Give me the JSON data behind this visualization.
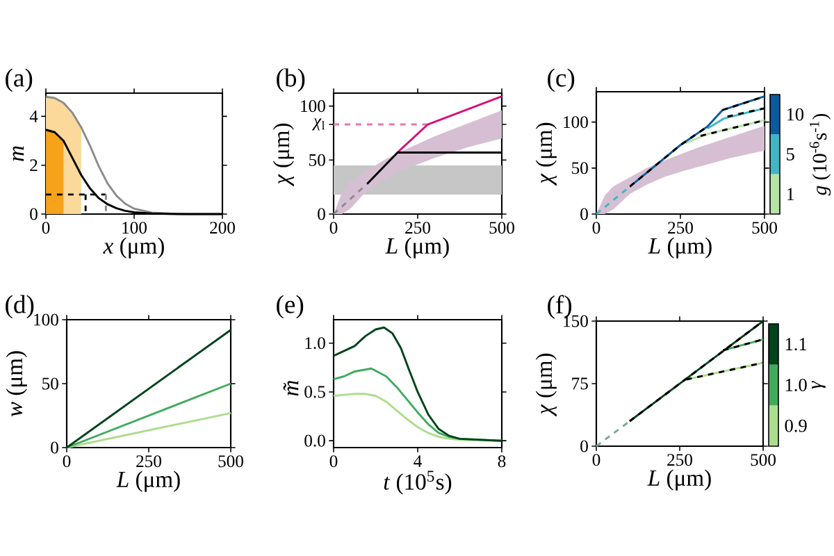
{
  "chart_data": [
    {
      "type": "line",
      "annotations": [
        "(a)"
      ],
      "xlabel": "*x* (μm)",
      "ylabel": "*m*",
      "xlim": [
        0,
        200
      ],
      "ylim": [
        0,
        4.95
      ],
      "xticks": [
        0,
        100,
        200
      ],
      "yticks": [
        0,
        2,
        4
      ],
      "series": [
        {
          "type": "area",
          "color": "#fbd99a",
          "x": [
            0,
            10,
            20,
            30,
            40
          ],
          "values": [
            4.8,
            4.75,
            4.55,
            4.15,
            3.55
          ]
        },
        {
          "type": "area",
          "color": "#f6a21a",
          "x": [
            0,
            10,
            20
          ],
          "values": [
            3.45,
            3.35,
            3.0
          ]
        },
        {
          "color": "#8c8c8c",
          "x": [
            0,
            10,
            20,
            30,
            40,
            50,
            60,
            70,
            80,
            90,
            100,
            120,
            140,
            160,
            200
          ],
          "values": [
            4.8,
            4.75,
            4.55,
            4.15,
            3.55,
            2.8,
            1.95,
            1.25,
            0.75,
            0.42,
            0.22,
            0.06,
            0.02,
            0,
            0
          ]
        },
        {
          "type": "line",
          "color": "#000000",
          "x": [
            0,
            10,
            20,
            30,
            40,
            50,
            60,
            70,
            80,
            90,
            100,
            120,
            150,
            200
          ],
          "values": [
            3.45,
            3.35,
            3.0,
            2.3,
            1.6,
            1.05,
            0.65,
            0.4,
            0.24,
            0.13,
            0.07,
            0.02,
            0,
            0
          ]
        },
        {
          "type": "line",
          "color": "#000000",
          "line_style": "dashed",
          "x": [
            0,
            68
          ],
          "values": [
            0.8,
            0.8
          ]
        },
        {
          "type": "line",
          "color": "#000000",
          "line_style": "dashed",
          "x": [
            45,
            45
          ],
          "values": [
            0.8,
            0
          ]
        },
        {
          "type": "line",
          "color": "#8c8c8c",
          "line_style": "dashed",
          "x": [
            68,
            68
          ],
          "values": [
            0.8,
            0
          ]
        }
      ]
    },
    {
      "type": "line",
      "annotations": [
        "(b)"
      ],
      "xlabel": "*L* (μm)",
      "ylabel": "*χ* (μm)",
      "xlim": [
        0,
        500
      ],
      "ylim": [
        0,
        112
      ],
      "xticks": [
        0,
        250,
        500
      ],
      "yticks": [
        0,
        50,
        {
          "value": 83,
          "label": "*χ*$_{l}$"
        },
        100
      ],
      "bands": [
        {
          "axis": "y",
          "from": 18,
          "to": 45,
          "color": "#c6c6c6"
        }
      ],
      "series": [
        {
          "type": "area",
          "color": "#d6bfd3",
          "x": [
            0,
            25,
            50,
            100,
            150,
            200,
            250,
            300,
            350,
            400,
            450,
            500
          ],
          "values": [
            null,
            null,
            null,
            null,
            null,
            null,
            null,
            null,
            null,
            null,
            null,
            null
          ],
          "lower": [
            0,
            0,
            5,
            22,
            32,
            40,
            46,
            52,
            57,
            62,
            66,
            70
          ],
          "upper": [
            0,
            20,
            30,
            40,
            50,
            58,
            65,
            72,
            78,
            84,
            90,
            96
          ]
        },
        {
          "type": "line",
          "color": "#e377b0",
          "line_style": "dashed",
          "x": [
            0,
            280
          ],
          "values": [
            83,
            83
          ]
        },
        {
          "type": "line",
          "color": "#8c8c8c",
          "line_style": "dashed",
          "x": [
            0,
            100
          ],
          "values": [
            0,
            28
          ]
        },
        {
          "type": "line",
          "color": "#d6127a",
          "x": [
            190,
            280,
            500
          ],
          "values": [
            57,
            83,
            109
          ]
        },
        {
          "type": "line",
          "color": "#000000",
          "x": [
            100,
            190,
            500
          ],
          "values": [
            28,
            57,
            57
          ]
        }
      ]
    },
    {
      "type": "line",
      "annotations": [
        "(c)"
      ],
      "xlabel": "*L* (μm)",
      "ylabel": "*χ* (μm)",
      "xlim": [
        0,
        500
      ],
      "ylim": [
        0,
        133
      ],
      "xticks": [
        0,
        250,
        500
      ],
      "yticks": [
        0,
        50,
        100
      ],
      "legend": "right",
      "legend_title": "*g* (10$^{-6}$s$^{-1}$)",
      "series": [
        {
          "type": "area",
          "color": "#d6bfd3",
          "x": [
            0,
            25,
            50,
            100,
            150,
            200,
            250,
            300,
            350,
            400,
            450,
            500
          ],
          "values": [
            null,
            null,
            null,
            null,
            null,
            null,
            null,
            null,
            null,
            null,
            null,
            null
          ],
          "lower": [
            0,
            0,
            5,
            22,
            32,
            40,
            46,
            51,
            56,
            61,
            65,
            69
          ],
          "upper": [
            0,
            20,
            30,
            40,
            50,
            58,
            65,
            72,
            78,
            84,
            90,
            96
          ]
        },
        {
          "type": "line",
          "color": "#41b6c4",
          "line_style": "dashed",
          "x": [
            0,
            100
          ],
          "values": [
            0,
            30
          ]
        },
        {
          "type": "line",
          "name": "1",
          "color": "#b7e3a7",
          "x": [
            265,
            330,
            500
          ],
          "values": [
            77,
            87,
            102
          ]
        },
        {
          "type": "line",
          "name": "5",
          "color": "#41b6c4",
          "x": [
            330,
            380,
            500
          ],
          "values": [
            93,
            104,
            115
          ]
        },
        {
          "type": "line",
          "name": "10",
          "color": "#0c5a9e",
          "x": [
            100,
            250,
            330,
            375,
            500
          ],
          "values": [
            30,
            75,
            95,
            113,
            128
          ]
        },
        {
          "type": "line",
          "color": "#000000",
          "line_style": "dashed",
          "x": [
            100,
            250,
            330
          ],
          "values": [
            30,
            75,
            95
          ]
        },
        {
          "type": "line",
          "color": "#000000",
          "line_style": "dashed",
          "x": [
            375,
            500
          ],
          "values": [
            113,
            128
          ]
        },
        {
          "type": "line",
          "color": "#000000",
          "line_style": "dashed",
          "x": [
            390,
            500
          ],
          "values": [
            106,
            115
          ]
        },
        {
          "type": "line",
          "color": "#000000",
          "line_style": "dashed",
          "x": [
            310,
            500
          ],
          "values": [
            85,
            102
          ]
        }
      ]
    },
    {
      "type": "line",
      "annotations": [
        "(d)"
      ],
      "xlabel": "*L* (μm)",
      "ylabel": "*w* (μm)",
      "xlim": [
        0,
        500
      ],
      "ylim": [
        0,
        100
      ],
      "xticks": [
        0,
        250,
        500
      ],
      "yticks": [
        0,
        50,
        100
      ],
      "series": [
        {
          "type": "line",
          "color": "#addd8e",
          "x": [
            0,
            500
          ],
          "values": [
            0,
            27
          ]
        },
        {
          "type": "line",
          "color": "#41ab5d",
          "x": [
            0,
            500
          ],
          "values": [
            0,
            50
          ]
        },
        {
          "type": "line",
          "color": "#00441b",
          "x": [
            0,
            500
          ],
          "values": [
            0,
            92
          ]
        }
      ]
    },
    {
      "type": "line",
      "annotations": [
        "(e)"
      ],
      "xlabel": "*t* (10$^{5}$s)",
      "ylabel": "*m̃*",
      "xlim": [
        0,
        8
      ],
      "ylim": [
        -0.07,
        1.24
      ],
      "xticks": [
        0,
        4,
        8
      ],
      "yticks": [
        {
          "value": 0,
          "label": "0.0"
        },
        {
          "value": 0.5,
          "label": "0.5"
        },
        {
          "value": 1,
          "label": "1.0"
        }
      ],
      "series": [
        {
          "type": "line",
          "color": "#addd8e",
          "x": [
            0,
            0.5,
            1,
            1.5,
            2,
            2.5,
            3,
            3.5,
            4,
            4.5,
            5,
            5.5,
            6,
            8
          ],
          "values": [
            0.46,
            0.47,
            0.48,
            0.48,
            0.46,
            0.4,
            0.31,
            0.22,
            0.14,
            0.08,
            0.04,
            0.02,
            0.01,
            0
          ]
        },
        {
          "type": "line",
          "color": "#41ab5d",
          "x": [
            0,
            0.5,
            1,
            1.8,
            2.5,
            3,
            3.5,
            4,
            4.5,
            5,
            5.5,
            6,
            7,
            8
          ],
          "values": [
            0.63,
            0.66,
            0.71,
            0.74,
            0.66,
            0.55,
            0.42,
            0.29,
            0.17,
            0.08,
            0.04,
            0.02,
            0.01,
            0
          ]
        },
        {
          "type": "line",
          "color": "#00441b",
          "x": [
            0,
            1,
            1.5,
            2,
            2.4,
            2.8,
            3.2,
            3.6,
            4,
            4.5,
            5,
            5.5,
            6,
            7,
            8
          ],
          "values": [
            0.87,
            0.97,
            1.07,
            1.14,
            1.16,
            1.1,
            0.95,
            0.72,
            0.5,
            0.27,
            0.12,
            0.05,
            0.02,
            0.01,
            0
          ]
        }
      ]
    },
    {
      "type": "line",
      "annotations": [
        "(f)"
      ],
      "xlabel": "*L* (μm)",
      "ylabel": "*χ* (μm)",
      "xlim": [
        0,
        500
      ],
      "ylim": [
        0,
        150
      ],
      "xticks": [
        0,
        250,
        500
      ],
      "yticks": [
        0,
        75,
        150
      ],
      "legend": "right",
      "legend_title": "*γ*",
      "series": [
        {
          "type": "line",
          "color": "#76a893",
          "line_style": "dashed",
          "x": [
            0,
            100
          ],
          "values": [
            0,
            30
          ]
        },
        {
          "type": "line",
          "name": "0.9",
          "color": "#addd8e",
          "x": [
            270,
            500
          ],
          "values": [
            80,
            100
          ]
        },
        {
          "type": "line",
          "name": "1.0",
          "color": "#41ab5d",
          "x": [
            380,
            500
          ],
          "values": [
            115,
            128
          ]
        },
        {
          "type": "line",
          "name": "1.1",
          "color": "#00441b",
          "x": [
            100,
            500
          ],
          "values": [
            30,
            150
          ]
        },
        {
          "type": "line",
          "color": "#000000",
          "line_style": "dashed",
          "x": [
            100,
            500
          ],
          "values": [
            30,
            150
          ]
        },
        {
          "type": "line",
          "color": "#000000",
          "line_style": "dashed",
          "x": [
            380,
            500
          ],
          "values": [
            115,
            128
          ]
        },
        {
          "type": "line",
          "color": "#000000",
          "line_style": "dashed",
          "x": [
            270,
            500
          ],
          "values": [
            80,
            100
          ]
        }
      ]
    }
  ]
}
